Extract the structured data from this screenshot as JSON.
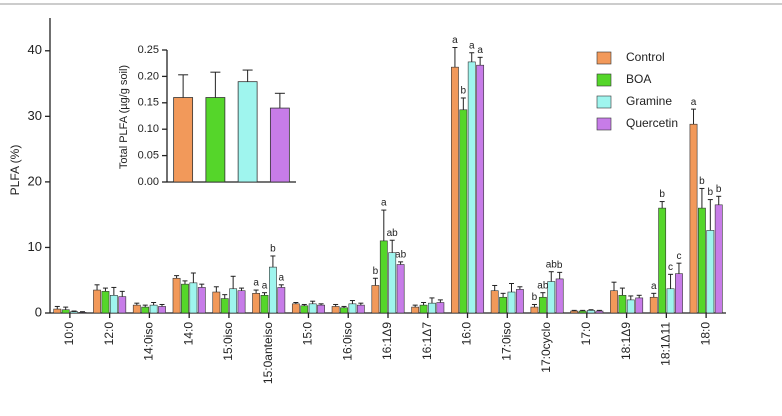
{
  "chart_data": [
    {
      "type": "grouped-bar",
      "y_label": "PLFA (%)",
      "categories": [
        "10:0",
        "12:0",
        "14:0iso",
        "14:0",
        "15:0iso",
        "15:0anteiso",
        "15:0",
        "16:0iso",
        "16:1Δ9",
        "16:1Δ7",
        "16:0",
        "17:0iso",
        "17:0cyclo",
        "17:0",
        "18:1Δ9",
        "18:1Δ11",
        "18:0"
      ],
      "ylim": [
        0,
        45
      ],
      "yticks": [
        0,
        10,
        20,
        30,
        40
      ],
      "legend": "top-right",
      "series": [
        {
          "name": "Control",
          "color": "#f2995a",
          "values": [
            0.6,
            3.5,
            1.2,
            5.3,
            3.2,
            3.0,
            1.4,
            1.0,
            4.2,
            0.9,
            37.5,
            3.4,
            0.9,
            0.3,
            3.4,
            2.4,
            28.8
          ],
          "errors": [
            0.4,
            0.8,
            0.3,
            0.4,
            0.8,
            0.5,
            0.2,
            0.3,
            1.1,
            0.3,
            3.0,
            0.8,
            0.4,
            0.1,
            1.3,
            0.6,
            2.3
          ],
          "letters": [
            null,
            null,
            null,
            null,
            null,
            "a",
            null,
            null,
            "b",
            null,
            "a",
            null,
            "b",
            null,
            null,
            "a",
            "a"
          ]
        },
        {
          "name": "BOA",
          "color": "#55d62a",
          "values": [
            0.5,
            3.3,
            0.9,
            4.4,
            2.2,
            2.7,
            1.1,
            0.8,
            11.0,
            1.2,
            31.0,
            2.4,
            2.4,
            0.3,
            2.7,
            16.0,
            16.0
          ],
          "errors": [
            0.4,
            0.5,
            0.3,
            0.5,
            0.6,
            0.4,
            0.2,
            0.2,
            4.7,
            0.4,
            1.8,
            0.6,
            0.7,
            0.1,
            1.1,
            1.0,
            3.0
          ],
          "letters": [
            null,
            null,
            null,
            null,
            null,
            "a",
            null,
            null,
            "a",
            null,
            "b",
            null,
            "ab",
            null,
            null,
            "b",
            "b"
          ]
        },
        {
          "name": "Gramine",
          "color": "#9ff5ee",
          "values": [
            0.2,
            2.7,
            1.2,
            4.6,
            3.7,
            7.0,
            1.4,
            1.4,
            9.2,
            1.5,
            38.3,
            3.2,
            4.8,
            0.4,
            2.0,
            3.7,
            12.6
          ],
          "errors": [
            0.1,
            1.2,
            0.4,
            1.5,
            1.9,
            1.7,
            0.4,
            0.5,
            1.9,
            0.8,
            1.4,
            1.3,
            1.5,
            0.1,
            0.6,
            2.2,
            4.7
          ],
          "letters": [
            null,
            null,
            null,
            null,
            null,
            "b",
            null,
            null,
            "ab",
            null,
            "a",
            null,
            "ab",
            null,
            null,
            "c",
            "b"
          ]
        },
        {
          "name": "Quercetin",
          "color": "#c77ce8",
          "values": [
            0.1,
            2.5,
            1.0,
            3.9,
            3.4,
            3.9,
            1.2,
            1.2,
            7.4,
            1.6,
            37.8,
            3.6,
            5.2,
            0.3,
            2.3,
            6.0,
            16.5
          ],
          "errors": [
            0.1,
            0.8,
            0.3,
            0.5,
            0.4,
            0.4,
            0.2,
            0.3,
            0.4,
            0.4,
            1.2,
            0.4,
            1.0,
            0.1,
            0.4,
            1.6,
            1.3
          ],
          "letters": [
            null,
            null,
            null,
            null,
            null,
            "a",
            null,
            null,
            "ab",
            null,
            "a",
            null,
            "b",
            null,
            null,
            "c",
            "b"
          ]
        }
      ]
    },
    {
      "type": "bar",
      "y_label": "Total PLFA (µg/g soil)",
      "values": [
        0.16,
        0.16,
        0.19,
        0.14
      ],
      "errors": [
        0.043,
        0.048,
        0.022,
        0.028
      ],
      "colors": [
        "#f2995a",
        "#55d62a",
        "#9ff5ee",
        "#c77ce8"
      ],
      "ylim": [
        0,
        0.25
      ],
      "yticks": [
        {
          "value": 0,
          "label": "0.00"
        },
        {
          "value": 0.05,
          "label": "0.05"
        },
        {
          "value": 0.1,
          "label": "0.10"
        },
        {
          "value": 0.15,
          "label": "0.15"
        },
        {
          "value": 0.2,
          "label": "0.20"
        },
        {
          "value": 0.25,
          "label": "0.25"
        }
      ]
    }
  ]
}
